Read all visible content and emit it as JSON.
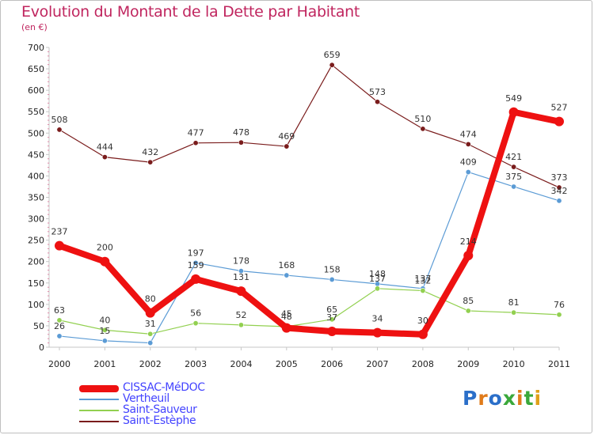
{
  "header": {
    "title": "Evolution du Montant de la Dette par Habitant",
    "subtitle": "(en €)"
  },
  "brand": {
    "logo_text": "Proxiti",
    "letter_colors": [
      "#2b6fc9",
      "#e07b1a",
      "#2b6fc9",
      "#3aa83a",
      "#e07b1a",
      "#3aa83a",
      "#e0a01a"
    ]
  },
  "chart_data": {
    "type": "line",
    "title": "Evolution du Montant de la Dette par Habitant",
    "subtitle": "(en €)",
    "xlabel": "",
    "ylabel": "",
    "categories": [
      "2000",
      "2001",
      "2002",
      "2003",
      "2004",
      "2005",
      "2006",
      "2007",
      "2008",
      "2009",
      "2010",
      "2011"
    ],
    "ylim": [
      0,
      700
    ],
    "yticks": [
      0,
      50,
      100,
      150,
      200,
      250,
      300,
      350,
      400,
      450,
      500,
      550,
      600,
      650,
      700
    ],
    "grid": false,
    "legend_position": "bottom-left",
    "series": [
      {
        "name": "Saint-Estèphe",
        "color": "#7a1c1c",
        "emphasis": false,
        "values": [
          508,
          444,
          432,
          477,
          478,
          469,
          659,
          573,
          510,
          474,
          421,
          373
        ]
      },
      {
        "name": "Vertheuil",
        "color": "#5b9bd5",
        "emphasis": false,
        "values": [
          26,
          15,
          10,
          197,
          178,
          168,
          158,
          148,
          137,
          409,
          375,
          342
        ]
      },
      {
        "name": "Saint-Sauveur",
        "color": "#92d050",
        "emphasis": false,
        "values": [
          63,
          40,
          31,
          56,
          52,
          48,
          65,
          137,
          132,
          85,
          81,
          76
        ]
      },
      {
        "name": "CISSAC-MéDOC",
        "color": "#ee1111",
        "emphasis": true,
        "values": [
          237,
          200,
          80,
          159,
          131,
          45,
          37,
          34,
          30,
          214,
          549,
          527
        ]
      }
    ],
    "data_labels": [
      {
        "series": "Saint-Estèphe",
        "labels": [
          "508",
          "444",
          "432",
          "477",
          "478",
          "469",
          "659",
          "573",
          "510",
          "474",
          "421",
          "373"
        ]
      },
      {
        "series": "Vertheuil",
        "labels": [
          "26",
          "15",
          "",
          "197",
          "178",
          "168",
          "158",
          "148",
          "137",
          "409",
          "375",
          "342"
        ]
      },
      {
        "series": "Saint-Sauveur",
        "labels": [
          "63",
          "40",
          "31",
          "56",
          "52",
          "48",
          "65",
          "137",
          "132",
          "85",
          "81",
          "76"
        ]
      },
      {
        "series": "CISSAC-MéDOC",
        "labels": [
          "237",
          "200",
          "80",
          "159",
          "131",
          "45",
          "37",
          "34",
          "30",
          "214",
          "549",
          "527"
        ]
      }
    ]
  },
  "legend": {
    "items": [
      {
        "label": "CISSAC-MéDOC",
        "color": "#ee1111",
        "emphasis": true
      },
      {
        "label": "Vertheuil",
        "color": "#5b9bd5",
        "emphasis": false
      },
      {
        "label": "Saint-Sauveur",
        "color": "#92d050",
        "emphasis": false
      },
      {
        "label": "Saint-Estèphe",
        "color": "#7a1c1c",
        "emphasis": false
      }
    ]
  }
}
